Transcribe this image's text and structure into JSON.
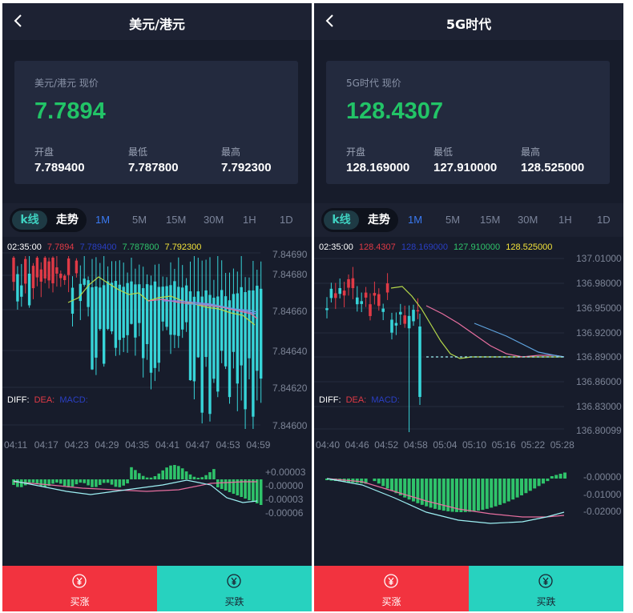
{
  "panels": [
    {
      "title": "美元/港元",
      "card": {
        "label": "美元/港元 现价",
        "price": "7.7894",
        "open_label": "开盘",
        "open": "7.789400",
        "low_label": "最低",
        "low": "7.787800",
        "high_label": "最高",
        "high": "7.792300"
      },
      "tabs": {
        "kline": "k线",
        "trend": "走势"
      },
      "periods": [
        "1M",
        "5M",
        "15M",
        "30M",
        "1H",
        "1D"
      ],
      "active_period": "1M",
      "legend": {
        "time": "02:35:00",
        "v1": "7.7894",
        "v2": "7.789400",
        "v3": "7.787800",
        "v4": "7.792300"
      },
      "indicator": {
        "diff": "DIFF:",
        "dea": "DEA:",
        "macd": "MACD:"
      },
      "chart_data": {
        "type": "candlestick",
        "y_ticks": [
          "7.84690",
          "7.84680",
          "7.84660",
          "7.84640",
          "7.84620",
          "7.84600"
        ],
        "x_ticks": [
          "04:11",
          "04:17",
          "04:23",
          "04:29",
          "04:35",
          "04:41",
          "04:47",
          "04:53",
          "04:59"
        ],
        "macd_ticks": [
          "+0.00003",
          "-0.00000",
          "-0.00003",
          "-0.00006"
        ]
      },
      "buttons": {
        "buy": "买涨",
        "sell": "买跌"
      }
    },
    {
      "title": "5G时代",
      "card": {
        "label": "5G时代 现价",
        "price": "128.4307",
        "open_label": "开盘",
        "open": "128.169000",
        "low_label": "最低",
        "low": "127.910000",
        "high_label": "最高",
        "high": "128.525000"
      },
      "tabs": {
        "kline": "k线",
        "trend": "走势"
      },
      "periods": [
        "1M",
        "5M",
        "15M",
        "30M",
        "1H",
        "1D"
      ],
      "active_period": "1M",
      "legend": {
        "time": "02:35:00",
        "v1": "128.4307",
        "v2": "128.169000",
        "v3": "127.910000",
        "v4": "128.525000"
      },
      "indicator": {
        "diff": "DIFF:",
        "dea": "DEA:",
        "macd": "MACD:"
      },
      "chart_data": {
        "type": "candlestick",
        "y_ticks": [
          "137.01000",
          "136.98000",
          "136.95000",
          "136.92000",
          "136.89000",
          "136.86000",
          "136.83000",
          "136.80099"
        ],
        "x_ticks": [
          "04:40",
          "04:46",
          "04:52",
          "04:58",
          "05:04",
          "05:10",
          "05:16",
          "05:22",
          "05:28"
        ],
        "macd_ticks": [
          "-0.00000",
          "-0.01000",
          "-0.02000"
        ]
      },
      "buttons": {
        "buy": "买涨",
        "sell": "买跌"
      }
    }
  ],
  "colors": {
    "up": "#e03a46",
    "down": "#37d4d8",
    "accent": "#3a7af2",
    "price": "#22c467",
    "macd": "#2fc36a"
  }
}
